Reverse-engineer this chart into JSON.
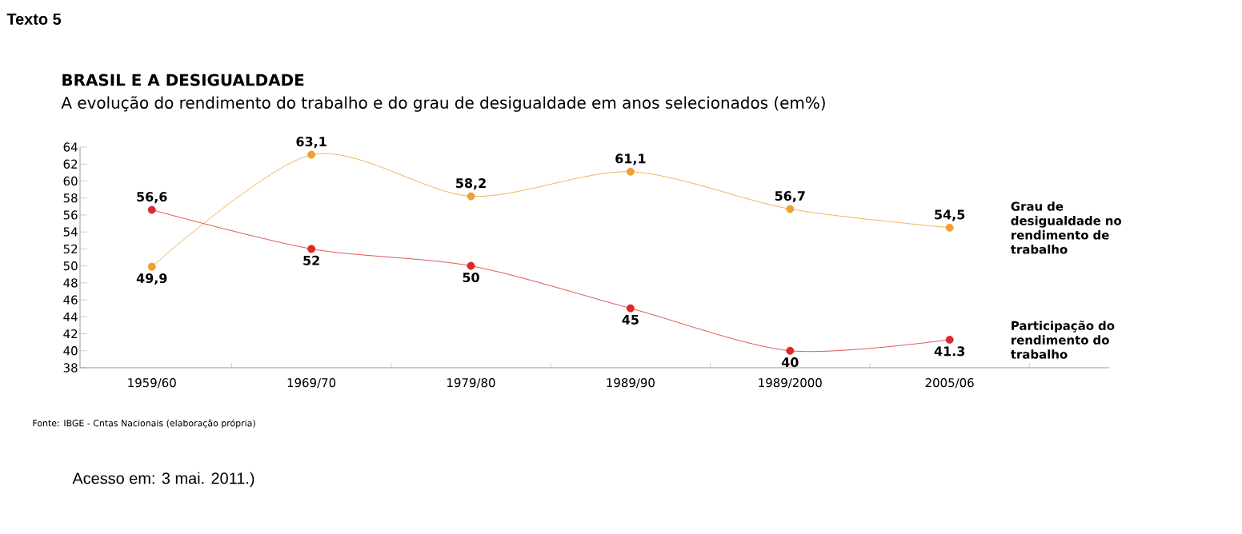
{
  "chart_data": {
    "type": "line",
    "title": "BRASIL E A DESIGUALDADE",
    "subtitle": "A evolução do rendimento do trabalho e do grau de desigualdade em anos selecionados (em%)",
    "categories": [
      "1959/60",
      "1969/70",
      "1979/80",
      "1989/90",
      "1989/2000",
      "2005/06"
    ],
    "series": [
      {
        "name": "Grau de desigualdade no rendimento de trabalho",
        "color": "#f0a030",
        "values": [
          49.9,
          63.1,
          58.2,
          61.1,
          56.7,
          54.5
        ],
        "value_labels": [
          "49,9",
          "63,1",
          "58,2",
          "61,1",
          "56,7",
          "54,5"
        ]
      },
      {
        "name": "Participação do rendimento do trabalho",
        "color": "#d92b2b",
        "values": [
          56.6,
          52,
          50,
          45,
          40,
          41.3
        ],
        "value_labels": [
          "56,6",
          "52",
          "50",
          "45",
          "40",
          "41.3"
        ]
      }
    ],
    "ylim": [
      38,
      64
    ],
    "yticks": [
      38,
      40,
      42,
      44,
      46,
      48,
      50,
      52,
      54,
      56,
      58,
      60,
      62,
      64
    ],
    "marker": "circle",
    "line_style": "solid",
    "grid": false,
    "legend": false,
    "annotations": [
      "Texto 5",
      "Fonte: IBGE - Cntas Nacionais (elaboração própria)",
      "Acesso em: 3 mai. 2011.)"
    ]
  }
}
